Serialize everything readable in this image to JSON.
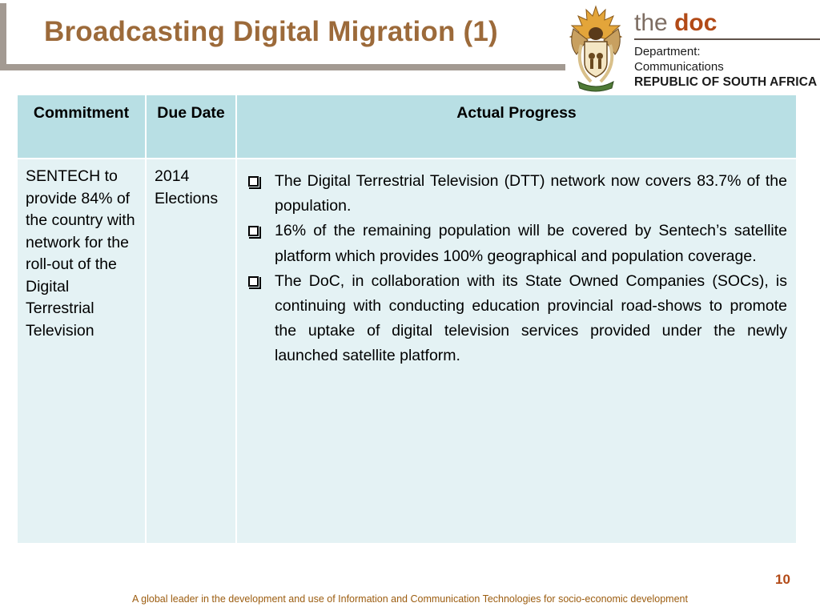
{
  "slide": {
    "title": "Broadcasting Digital Migration (1)",
    "page_number": "10",
    "footer": "A global leader in the development and use of Information and Communication Technologies for socio-economic development"
  },
  "logo": {
    "emblem_icon": "coat-of-arms-icon",
    "wordmark_the": "the",
    "wordmark_doc": "doc",
    "department_line1": "Department:",
    "department_line2": "Communications",
    "country": "REPUBLIC OF SOUTH AFRICA"
  },
  "table": {
    "headers": {
      "commitment": "Commitment",
      "due_date": "Due Date",
      "progress": "Actual Progress"
    },
    "rows": [
      {
        "commitment": "SENTECH to provide 84% of the country with network for the roll-out of the Digital Terrestrial Television",
        "due_date": "2014 Elections",
        "progress": [
          "The Digital Terrestrial Television (DTT) network now covers 83.7% of the population.",
          "16% of the remaining population will be covered by Sentech’s satellite platform which provides 100% geographical and population coverage.",
          "The DoC, in collaboration with its State Owned Companies (SOCs), is continuing with conducting education provincial road-shows to promote the uptake of digital television services provided under the newly launched satellite platform."
        ]
      }
    ]
  },
  "colors": {
    "title": "#9c6a3a",
    "header_fill": "#b8dfe4",
    "body_fill": "#e4f2f4",
    "frame": "#a39a92",
    "accent": "#b24a17"
  }
}
